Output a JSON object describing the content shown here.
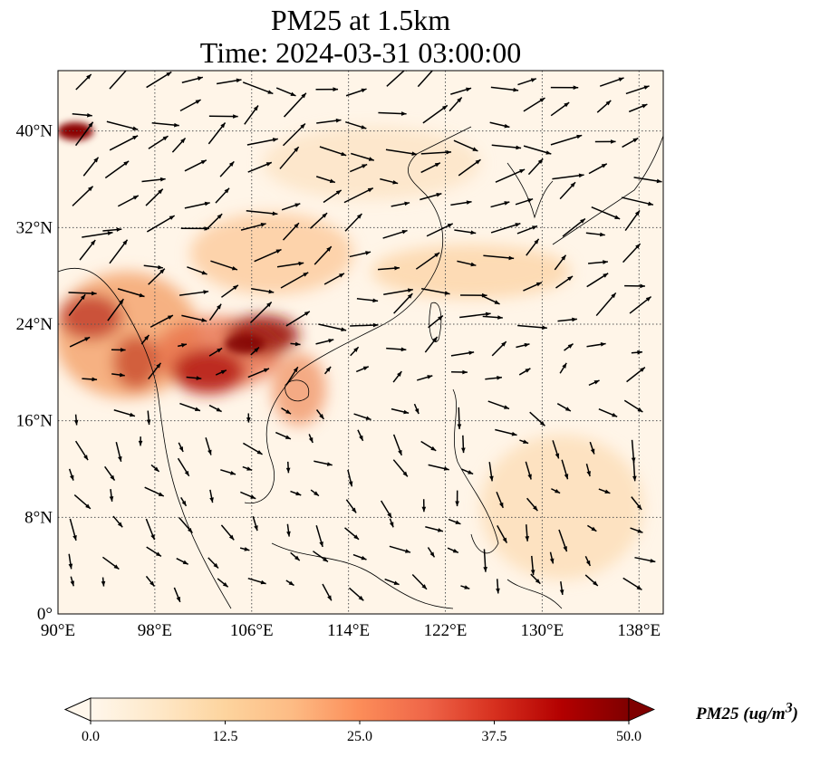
{
  "title": {
    "line1": "PM25 at 1.5km",
    "line2": "Time: 2024-03-31 03:00:00"
  },
  "map": {
    "projection": "PlateCarree",
    "lon_range": [
      90,
      140
    ],
    "lat_range": [
      0,
      45
    ],
    "lon_ticks": [
      {
        "value": 90,
        "label": "90°E"
      },
      {
        "value": 98,
        "label": "98°E"
      },
      {
        "value": 106,
        "label": "106°E"
      },
      {
        "value": 114,
        "label": "114°E"
      },
      {
        "value": 122,
        "label": "122°E"
      },
      {
        "value": 130,
        "label": "130°E"
      },
      {
        "value": 138,
        "label": "138°E"
      }
    ],
    "lat_ticks": [
      {
        "value": 0,
        "label": "0°"
      },
      {
        "value": 8,
        "label": "8°N"
      },
      {
        "value": 16,
        "label": "16°N"
      },
      {
        "value": 24,
        "label": "24°N"
      },
      {
        "value": 32,
        "label": "32°N"
      },
      {
        "value": 40,
        "label": "40°N"
      }
    ],
    "gridlines": true,
    "coastlines": true,
    "field": "PM25",
    "wind_vectors": true
  },
  "colorbar": {
    "label_html": "PM25 (ug/m<sup>3</sup>)",
    "min": 0,
    "max": 50,
    "extend": "both",
    "colormap": "OrRd",
    "stops": [
      "#fff7ec",
      "#fee8c8",
      "#fdd49e",
      "#fdbb84",
      "#fc8d59",
      "#ef6548",
      "#d7301f",
      "#b30000",
      "#7f0000"
    ],
    "ticks": [
      "0.0",
      "12.5",
      "25.0",
      "37.5",
      "50.0"
    ]
  },
  "colors": {
    "background": "#fff5e8",
    "hotspot_dark": "#8b0000",
    "hotspot_mid": "#c0392b",
    "haze": "#f4a460"
  }
}
